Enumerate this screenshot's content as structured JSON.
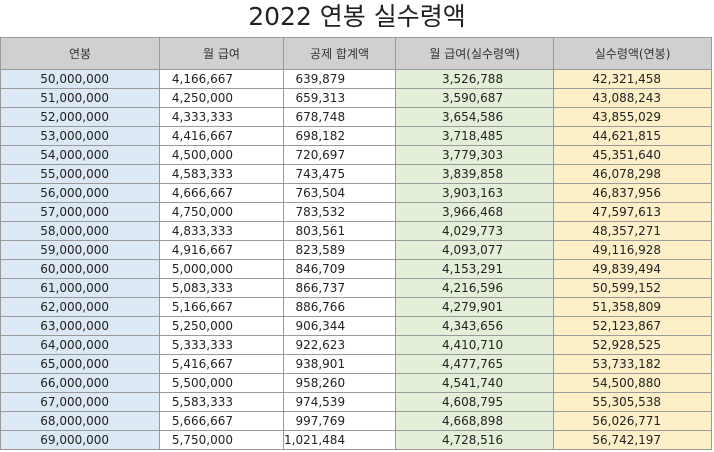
{
  "page": {
    "title": "2022 연봉 실수령액"
  },
  "colors": {
    "header": "#d0d0d0",
    "col_annual": "#dce8f4",
    "col_net_monthly": "#e4efd9",
    "col_net_annual": "#fdefc8"
  },
  "table": {
    "headers": [
      "연봉",
      "월 급여",
      "공제 합계액",
      "월 급여(실수령액)",
      "실수령액(연봉)"
    ],
    "rows": [
      [
        "50,000,000",
        "4,166,667",
        "639,879",
        "3,526,788",
        "42,321,458"
      ],
      [
        "51,000,000",
        "4,250,000",
        "659,313",
        "3,590,687",
        "43,088,243"
      ],
      [
        "52,000,000",
        "4,333,333",
        "678,748",
        "3,654,586",
        "43,855,029"
      ],
      [
        "53,000,000",
        "4,416,667",
        "698,182",
        "3,718,485",
        "44,621,815"
      ],
      [
        "54,000,000",
        "4,500,000",
        "720,697",
        "3,779,303",
        "45,351,640"
      ],
      [
        "55,000,000",
        "4,583,333",
        "743,475",
        "3,839,858",
        "46,078,298"
      ],
      [
        "56,000,000",
        "4,666,667",
        "763,504",
        "3,903,163",
        "46,837,956"
      ],
      [
        "57,000,000",
        "4,750,000",
        "783,532",
        "3,966,468",
        "47,597,613"
      ],
      [
        "58,000,000",
        "4,833,333",
        "803,561",
        "4,029,773",
        "48,357,271"
      ],
      [
        "59,000,000",
        "4,916,667",
        "823,589",
        "4,093,077",
        "49,116,928"
      ],
      [
        "60,000,000",
        "5,000,000",
        "846,709",
        "4,153,291",
        "49,839,494"
      ],
      [
        "61,000,000",
        "5,083,333",
        "866,737",
        "4,216,596",
        "50,599,152"
      ],
      [
        "62,000,000",
        "5,166,667",
        "886,766",
        "4,279,901",
        "51,358,809"
      ],
      [
        "63,000,000",
        "5,250,000",
        "906,344",
        "4,343,656",
        "52,123,867"
      ],
      [
        "64,000,000",
        "5,333,333",
        "922,623",
        "4,410,710",
        "52,928,525"
      ],
      [
        "65,000,000",
        "5,416,667",
        "938,901",
        "4,477,765",
        "53,733,182"
      ],
      [
        "66,000,000",
        "5,500,000",
        "958,260",
        "4,541,740",
        "54,500,880"
      ],
      [
        "67,000,000",
        "5,583,333",
        "974,539",
        "4,608,795",
        "55,305,538"
      ],
      [
        "68,000,000",
        "5,666,667",
        "997,769",
        "4,668,898",
        "56,026,771"
      ],
      [
        "69,000,000",
        "5,750,000",
        "1,021,484",
        "4,728,516",
        "56,742,197"
      ]
    ]
  }
}
